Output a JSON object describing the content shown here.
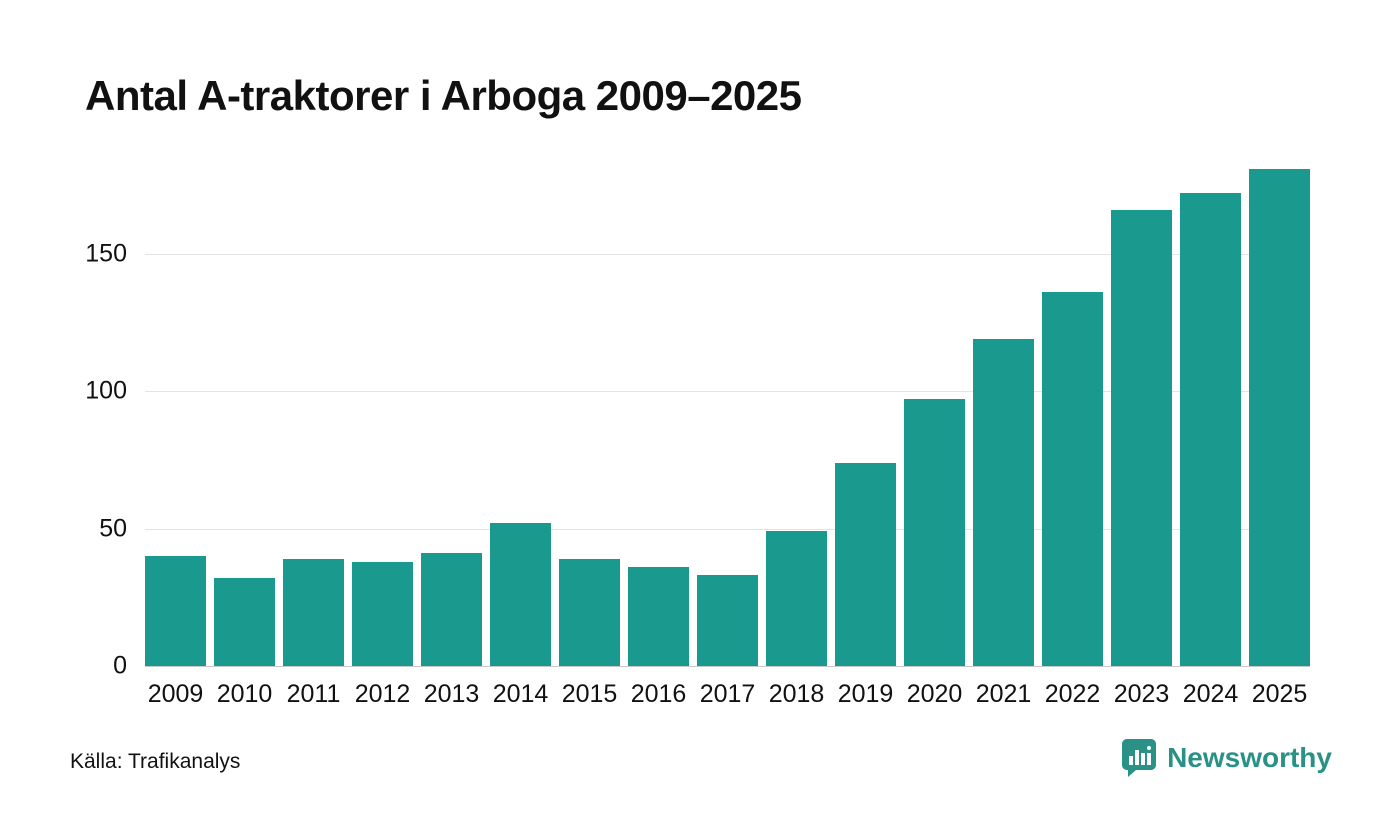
{
  "title": "Antal A-traktorer i Arboga 2009–2025",
  "source": "Källa: Trafikanalys",
  "brand": {
    "name": "Newsworthy",
    "icon": "newsworthy-chart-bubble-icon",
    "color": "#2a9187"
  },
  "colors": {
    "bar": "#1a9a8e",
    "gridline": "#e4e4e4",
    "baseline": "#c9c9c9",
    "text": "#111111"
  },
  "chart_data": {
    "type": "bar",
    "title": "Antal A-traktorer i Arboga 2009–2025",
    "categories": [
      "2009",
      "2010",
      "2011",
      "2012",
      "2013",
      "2014",
      "2015",
      "2016",
      "2017",
      "2018",
      "2019",
      "2020",
      "2021",
      "2022",
      "2023",
      "2024",
      "2025"
    ],
    "values": [
      40,
      32,
      39,
      38,
      41,
      52,
      39,
      36,
      33,
      49,
      74,
      97,
      119,
      136,
      166,
      172,
      181
    ],
    "xlabel": "",
    "ylabel": "",
    "ylim": [
      0,
      183
    ],
    "yticks": [
      0,
      50,
      100,
      150
    ],
    "grid": "horizontal",
    "legend": "none",
    "bar_color": "#1a9a8e"
  }
}
